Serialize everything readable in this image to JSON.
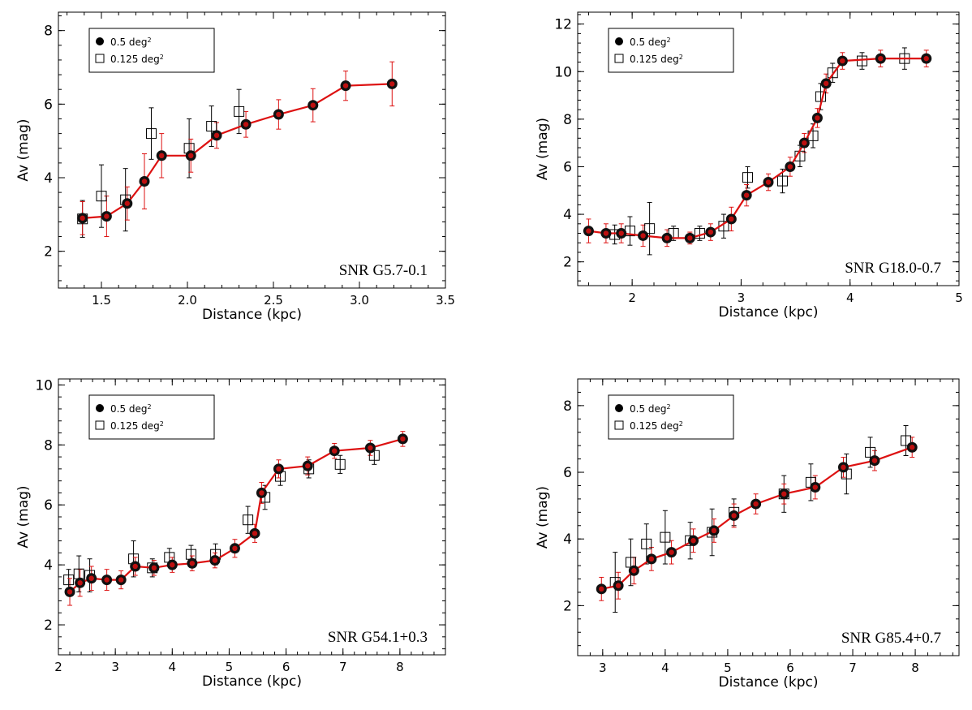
{
  "figure": {
    "legend": {
      "filled_label": "0.5 deg",
      "open_label": "0.125 deg",
      "unit_superscript": "2"
    }
  },
  "chart_data": [
    {
      "type": "scatter",
      "annotation": "SNR G5.7-0.1",
      "xlabel": "Distance (kpc)",
      "ylabel": "Av (mag)",
      "xlim": [
        1.25,
        3.5
      ],
      "ylim": [
        1,
        8.5
      ],
      "xticks": [
        "1.5",
        "2.0",
        "2.5",
        "3.0",
        "3.5"
      ],
      "xtick_values": [
        1.5,
        2.0,
        2.5,
        3.0,
        3.5
      ],
      "yticks": [
        "2",
        "4",
        "6",
        "8"
      ],
      "ytick_values": [
        2,
        4,
        6,
        8
      ],
      "legend_position": "top-left",
      "series": [
        {
          "name": "0.5 deg²",
          "marker": "filled-circle",
          "line_color": "#dd1111",
          "points": [
            {
              "x": 1.39,
              "y": 2.9,
              "err": 0.45
            },
            {
              "x": 1.53,
              "y": 2.95,
              "err": 0.55
            },
            {
              "x": 1.65,
              "y": 3.3,
              "err": 0.45
            },
            {
              "x": 1.75,
              "y": 3.9,
              "err": 0.75
            },
            {
              "x": 1.85,
              "y": 4.6,
              "err": 0.6
            },
            {
              "x": 2.02,
              "y": 4.6,
              "err": 0.45
            },
            {
              "x": 2.17,
              "y": 5.15,
              "err": 0.35
            },
            {
              "x": 2.34,
              "y": 5.45,
              "err": 0.35
            },
            {
              "x": 2.53,
              "y": 5.72,
              "err": 0.4
            },
            {
              "x": 2.73,
              "y": 5.97,
              "err": 0.45
            },
            {
              "x": 2.92,
              "y": 6.5,
              "err": 0.4
            },
            {
              "x": 3.19,
              "y": 6.55,
              "err": 0.6
            }
          ]
        },
        {
          "name": "0.125 deg²",
          "marker": "open-square",
          "points": [
            {
              "x": 1.39,
              "y": 2.88,
              "err": 0.5
            },
            {
              "x": 1.5,
              "y": 3.5,
              "err": 0.85
            },
            {
              "x": 1.64,
              "y": 3.4,
              "err": 0.85
            },
            {
              "x": 1.79,
              "y": 5.2,
              "err": 0.7
            },
            {
              "x": 2.01,
              "y": 4.8,
              "err": 0.8
            },
            {
              "x": 2.14,
              "y": 5.4,
              "err": 0.55
            },
            {
              "x": 2.3,
              "y": 5.8,
              "err": 0.6
            }
          ]
        }
      ]
    },
    {
      "type": "scatter",
      "annotation": "SNR G18.0-0.7",
      "xlabel": "Distance (kpc)",
      "ylabel": "Av (mag)",
      "xlim": [
        1.5,
        5.0
      ],
      "ylim": [
        1,
        12.5
      ],
      "xticks": [
        "2",
        "3",
        "4",
        "5"
      ],
      "xtick_values": [
        2,
        3,
        4,
        5
      ],
      "yticks": [
        "2",
        "4",
        "6",
        "8",
        "10",
        "12"
      ],
      "ytick_values": [
        2,
        4,
        6,
        8,
        10,
        12
      ],
      "legend_position": "top-left",
      "series": [
        {
          "name": "0.5 deg²",
          "marker": "filled-circle",
          "line_color": "#dd1111",
          "points": [
            {
              "x": 1.6,
              "y": 3.3,
              "err": 0.5
            },
            {
              "x": 1.76,
              "y": 3.2,
              "err": 0.4
            },
            {
              "x": 1.9,
              "y": 3.2,
              "err": 0.4
            },
            {
              "x": 2.1,
              "y": 3.1,
              "err": 0.45
            },
            {
              "x": 2.32,
              "y": 3.0,
              "err": 0.35
            },
            {
              "x": 2.53,
              "y": 3.0,
              "err": 0.25
            },
            {
              "x": 2.72,
              "y": 3.25,
              "err": 0.35
            },
            {
              "x": 2.91,
              "y": 3.8,
              "err": 0.5
            },
            {
              "x": 3.05,
              "y": 4.8,
              "err": 0.45
            },
            {
              "x": 3.25,
              "y": 5.35,
              "err": 0.35
            },
            {
              "x": 3.45,
              "y": 6.0,
              "err": 0.4
            },
            {
              "x": 3.58,
              "y": 7.0,
              "err": 0.4
            },
            {
              "x": 3.7,
              "y": 8.05,
              "err": 0.4
            },
            {
              "x": 3.78,
              "y": 9.5,
              "err": 0.4
            },
            {
              "x": 3.93,
              "y": 10.45,
              "err": 0.35
            },
            {
              "x": 4.28,
              "y": 10.55,
              "err": 0.35
            },
            {
              "x": 4.7,
              "y": 10.55,
              "err": 0.35
            }
          ]
        },
        {
          "name": "0.125 deg²",
          "marker": "open-square",
          "points": [
            {
              "x": 1.84,
              "y": 3.15,
              "err": 0.4
            },
            {
              "x": 1.98,
              "y": 3.3,
              "err": 0.6
            },
            {
              "x": 2.16,
              "y": 3.4,
              "err": 1.1
            },
            {
              "x": 2.38,
              "y": 3.2,
              "err": 0.3
            },
            {
              "x": 2.62,
              "y": 3.2,
              "err": 0.3
            },
            {
              "x": 2.84,
              "y": 3.5,
              "err": 0.5
            },
            {
              "x": 3.06,
              "y": 5.55,
              "err": 0.45
            },
            {
              "x": 3.38,
              "y": 5.4,
              "err": 0.5
            },
            {
              "x": 3.54,
              "y": 6.45,
              "err": 0.45
            },
            {
              "x": 3.66,
              "y": 7.3,
              "err": 0.5
            },
            {
              "x": 3.73,
              "y": 8.95,
              "err": 0.55
            },
            {
              "x": 3.84,
              "y": 9.95,
              "err": 0.4
            },
            {
              "x": 4.11,
              "y": 10.45,
              "err": 0.35
            },
            {
              "x": 4.5,
              "y": 10.55,
              "err": 0.45
            }
          ]
        }
      ]
    },
    {
      "type": "scatter",
      "annotation": "SNR G54.1+0.3",
      "xlabel": "Distance (kpc)",
      "ylabel": "Av (mag)",
      "xlim": [
        2.0,
        8.8
      ],
      "ylim": [
        1,
        10.2
      ],
      "xticks": [
        "2",
        "3",
        "4",
        "5",
        "6",
        "7",
        "8"
      ],
      "xtick_values": [
        2,
        3,
        4,
        5,
        6,
        7,
        8
      ],
      "yticks": [
        "2",
        "4",
        "6",
        "8",
        "10"
      ],
      "ytick_values": [
        2,
        4,
        6,
        8,
        10
      ],
      "legend_position": "top-left",
      "series": [
        {
          "name": "0.5 deg²",
          "marker": "filled-circle",
          "line_color": "#dd1111",
          "points": [
            {
              "x": 2.2,
              "y": 3.1,
              "err": 0.45
            },
            {
              "x": 2.38,
              "y": 3.4,
              "err": 0.45
            },
            {
              "x": 2.58,
              "y": 3.55,
              "err": 0.4
            },
            {
              "x": 2.85,
              "y": 3.5,
              "err": 0.35
            },
            {
              "x": 3.1,
              "y": 3.5,
              "err": 0.3
            },
            {
              "x": 3.35,
              "y": 3.95,
              "err": 0.3
            },
            {
              "x": 3.68,
              "y": 3.9,
              "err": 0.25
            },
            {
              "x": 4.0,
              "y": 4.0,
              "err": 0.25
            },
            {
              "x": 4.35,
              "y": 4.05,
              "err": 0.25
            },
            {
              "x": 4.75,
              "y": 4.15,
              "err": 0.25
            },
            {
              "x": 5.1,
              "y": 4.55,
              "err": 0.3
            },
            {
              "x": 5.45,
              "y": 5.05,
              "err": 0.3
            },
            {
              "x": 5.57,
              "y": 6.4,
              "err": 0.35
            },
            {
              "x": 5.87,
              "y": 7.2,
              "err": 0.3
            },
            {
              "x": 6.38,
              "y": 7.3,
              "err": 0.3
            },
            {
              "x": 6.85,
              "y": 7.8,
              "err": 0.25
            },
            {
              "x": 7.48,
              "y": 7.9,
              "err": 0.25
            },
            {
              "x": 8.05,
              "y": 8.2,
              "err": 0.25
            }
          ]
        },
        {
          "name": "0.125 deg²",
          "marker": "open-square",
          "points": [
            {
              "x": 2.18,
              "y": 3.5,
              "err": 0.35
            },
            {
              "x": 2.36,
              "y": 3.7,
              "err": 0.6
            },
            {
              "x": 2.55,
              "y": 3.65,
              "err": 0.55
            },
            {
              "x": 3.32,
              "y": 4.2,
              "err": 0.6
            },
            {
              "x": 3.65,
              "y": 3.9,
              "err": 0.3
            },
            {
              "x": 3.95,
              "y": 4.25,
              "err": 0.3
            },
            {
              "x": 4.33,
              "y": 4.35,
              "err": 0.3
            },
            {
              "x": 4.76,
              "y": 4.35,
              "err": 0.35
            },
            {
              "x": 5.33,
              "y": 5.5,
              "err": 0.45
            },
            {
              "x": 5.63,
              "y": 6.25,
              "err": 0.4
            },
            {
              "x": 5.9,
              "y": 6.95,
              "err": 0.3
            },
            {
              "x": 6.4,
              "y": 7.2,
              "err": 0.3
            },
            {
              "x": 6.95,
              "y": 7.35,
              "err": 0.3
            },
            {
              "x": 7.55,
              "y": 7.65,
              "err": 0.3
            }
          ]
        }
      ]
    },
    {
      "type": "scatter",
      "annotation": "SNR G85.4+0.7",
      "xlabel": "Distance (kpc)",
      "ylabel": "Av (mag)",
      "xlim": [
        2.6,
        8.7
      ],
      "ylim": [
        0.5,
        8.8
      ],
      "xticks": [
        "3",
        "4",
        "5",
        "6",
        "7",
        "8"
      ],
      "xtick_values": [
        3,
        4,
        5,
        6,
        7,
        8
      ],
      "yticks": [
        "2",
        "4",
        "6",
        "8"
      ],
      "ytick_values": [
        2,
        4,
        6,
        8
      ],
      "legend_position": "top-left",
      "series": [
        {
          "name": "0.5 deg²",
          "marker": "filled-circle",
          "line_color": "#dd1111",
          "points": [
            {
              "x": 2.98,
              "y": 2.5,
              "err": 0.35
            },
            {
              "x": 3.25,
              "y": 2.6,
              "err": 0.4
            },
            {
              "x": 3.5,
              "y": 3.05,
              "err": 0.4
            },
            {
              "x": 3.78,
              "y": 3.4,
              "err": 0.35
            },
            {
              "x": 4.1,
              "y": 3.6,
              "err": 0.35
            },
            {
              "x": 4.45,
              "y": 3.95,
              "err": 0.35
            },
            {
              "x": 4.78,
              "y": 4.25,
              "err": 0.35
            },
            {
              "x": 5.1,
              "y": 4.7,
              "err": 0.35
            },
            {
              "x": 5.45,
              "y": 5.05,
              "err": 0.3
            },
            {
              "x": 5.9,
              "y": 5.35,
              "err": 0.3
            },
            {
              "x": 6.4,
              "y": 5.55,
              "err": 0.35
            },
            {
              "x": 6.85,
              "y": 6.15,
              "err": 0.3
            },
            {
              "x": 7.35,
              "y": 6.35,
              "err": 0.3
            },
            {
              "x": 7.95,
              "y": 6.75,
              "err": 0.3
            }
          ]
        },
        {
          "name": "0.125 deg²",
          "marker": "open-square",
          "points": [
            {
              "x": 3.2,
              "y": 2.7,
              "err": 0.9
            },
            {
              "x": 3.45,
              "y": 3.3,
              "err": 0.7
            },
            {
              "x": 3.7,
              "y": 3.85,
              "err": 0.6
            },
            {
              "x": 4.0,
              "y": 4.05,
              "err": 0.8
            },
            {
              "x": 4.4,
              "y": 3.95,
              "err": 0.55
            },
            {
              "x": 4.75,
              "y": 4.2,
              "err": 0.7
            },
            {
              "x": 5.1,
              "y": 4.8,
              "err": 0.4
            },
            {
              "x": 5.9,
              "y": 5.35,
              "err": 0.55
            },
            {
              "x": 6.33,
              "y": 5.7,
              "err": 0.55
            },
            {
              "x": 6.9,
              "y": 5.95,
              "err": 0.6
            },
            {
              "x": 7.28,
              "y": 6.6,
              "err": 0.45
            },
            {
              "x": 7.85,
              "y": 6.95,
              "err": 0.45
            }
          ]
        }
      ]
    }
  ]
}
